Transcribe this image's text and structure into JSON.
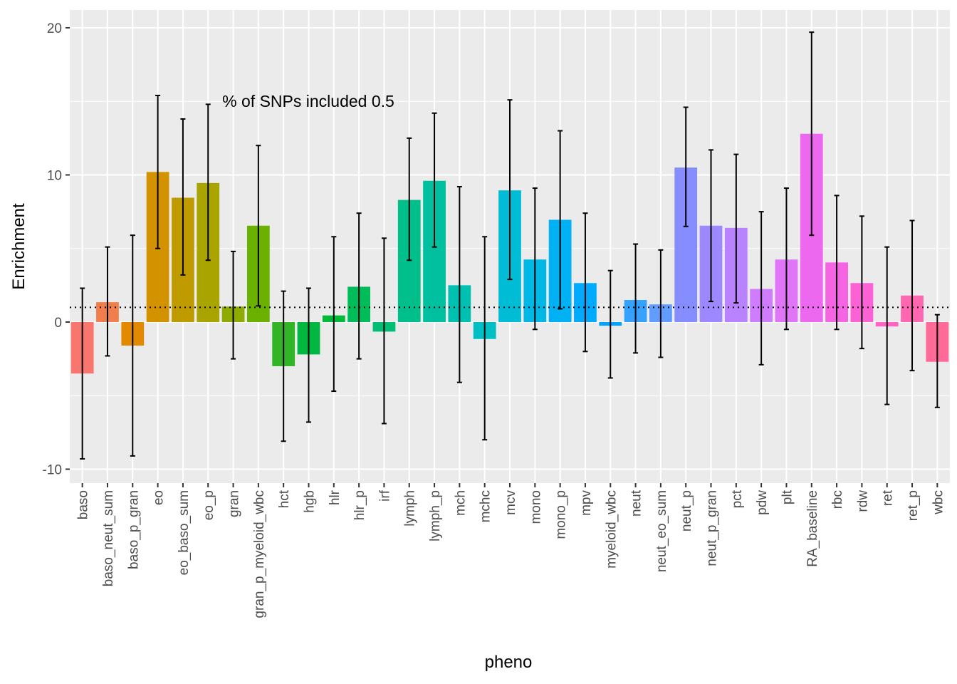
{
  "chart_data": {
    "type": "bar",
    "title": "",
    "xlabel": "pheno",
    "ylabel": "Enrichment",
    "ylim": [
      -10.8,
      20.5
    ],
    "yticks": [
      -10,
      0,
      10,
      20
    ],
    "ytick_labels": [
      "-10",
      "0",
      "10",
      "20"
    ],
    "reference_line": 1,
    "annotation": "% of SNPs included 0.5",
    "grid": true,
    "legend": "none",
    "categories": [
      "baso",
      "baso_neut_sum",
      "baso_p_gran",
      "eo",
      "eo_baso_sum",
      "eo_p",
      "gran",
      "gran_p_myeloid_wbc",
      "hct",
      "hgb",
      "hlr",
      "hlr_p",
      "irf",
      "lymph",
      "lymph_p",
      "mch",
      "mchc",
      "mcv",
      "mono",
      "mono_p",
      "mpv",
      "myeloid_wbc",
      "neut",
      "neut_eo_sum",
      "neut_p",
      "neut_p_gran",
      "pct",
      "pdw",
      "plt",
      "RA_baseline",
      "rbc",
      "rdw",
      "ret",
      "ret_p",
      "wbc"
    ],
    "values": [
      -3.5,
      1.35,
      -1.6,
      10.2,
      8.45,
      9.45,
      1.05,
      6.55,
      -3.0,
      -2.2,
      0.45,
      2.4,
      -0.65,
      8.3,
      9.6,
      2.5,
      -1.15,
      8.95,
      4.25,
      6.95,
      2.65,
      -0.25,
      1.5,
      1.2,
      10.5,
      6.55,
      6.4,
      2.25,
      4.25,
      12.8,
      4.05,
      2.65,
      -0.3,
      1.8,
      -2.7
    ],
    "error_low": [
      -9.3,
      -2.3,
      -9.1,
      5.0,
      3.2,
      4.2,
      -2.5,
      1.1,
      -8.1,
      -6.8,
      -4.7,
      -2.5,
      -6.9,
      4.2,
      5.1,
      -4.1,
      -8.0,
      2.9,
      -0.5,
      0.9,
      -2.0,
      -3.8,
      -2.1,
      -2.4,
      6.5,
      1.4,
      1.3,
      -2.9,
      -0.5,
      5.9,
      -0.5,
      -1.8,
      -5.6,
      -3.3,
      -5.8
    ],
    "error_high": [
      2.3,
      5.1,
      5.9,
      15.4,
      13.8,
      14.8,
      4.8,
      12.0,
      2.1,
      2.3,
      5.8,
      7.4,
      5.7,
      12.5,
      14.2,
      9.2,
      5.8,
      15.1,
      9.1,
      13.0,
      7.4,
      3.5,
      5.3,
      4.9,
      14.6,
      11.7,
      11.4,
      7.5,
      9.1,
      19.7,
      8.6,
      7.2,
      5.1,
      6.9,
      0.5
    ],
    "colors": [
      "#F8766D",
      "#F07F4D",
      "#E38900",
      "#D39200",
      "#C09B00",
      "#A9A400",
      "#8EAB00",
      "#6BB100",
      "#31B425",
      "#00B83F",
      "#00BA38",
      "#00BC59",
      "#00BE74",
      "#00BF8B",
      "#00C0A0",
      "#00C0B2",
      "#00BFC4",
      "#00BCD5",
      "#00B8E5",
      "#00B2F3",
      "#00ABFD",
      "#00A5FF",
      "#35A2FF",
      "#619CFF",
      "#868DFF",
      "#9E88FF",
      "#B983FF",
      "#CF7CFF",
      "#E076F7",
      "#EC69EF",
      "#F564E3",
      "#FC61D5",
      "#FF63C4",
      "#FF67B1",
      "#FF6A98"
    ]
  }
}
